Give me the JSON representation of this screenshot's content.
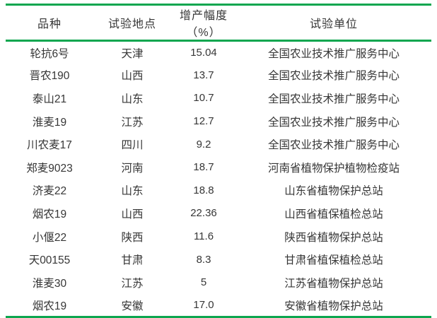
{
  "colors": {
    "accent_green": "#0ca64f",
    "text": "#363636"
  },
  "table": {
    "headers": {
      "variety": "品种",
      "location": "试验地点",
      "increase": "增产幅度（%）",
      "unit": "试验单位"
    },
    "rows": [
      {
        "variety": "轮抗6号",
        "location": "天津",
        "increase": "15.04",
        "unit": "全国农业技术推广服务中心"
      },
      {
        "variety": "晋农190",
        "location": "山西",
        "increase": "13.7",
        "unit": "全国农业技术推广服务中心"
      },
      {
        "variety": "泰山21",
        "location": "山东",
        "increase": "10.7",
        "unit": "全国农业技术推广服务中心"
      },
      {
        "variety": "淮麦19",
        "location": "江苏",
        "increase": "12.7",
        "unit": "全国农业技术推广服务中心"
      },
      {
        "variety": "川农麦17",
        "location": "四川",
        "increase": "9.2",
        "unit": "全国农业技术推广服务中心"
      },
      {
        "variety": "郑麦9023",
        "location": "河南",
        "increase": "18.7",
        "unit": "河南省植物保护植物检疫站"
      },
      {
        "variety": "济麦22",
        "location": "山东",
        "increase": "18.8",
        "unit": "山东省植物保护总站"
      },
      {
        "variety": "烟农19",
        "location": "山西",
        "increase": "22.36",
        "unit": "山西省植保植检总站"
      },
      {
        "variety": "小偃22",
        "location": "陕西",
        "increase": "11.6",
        "unit": "陕西省植物保护总站"
      },
      {
        "variety": "天00155",
        "location": "甘肃",
        "increase": "8.3",
        "unit": "甘肃省植保植检总站"
      },
      {
        "variety": "淮麦30",
        "location": "江苏",
        "increase": "5",
        "unit": "江苏省植物保护总站"
      },
      {
        "variety": "烟农19",
        "location": "安徽",
        "increase": "17.0",
        "unit": "安徽省植物保护总站"
      }
    ]
  }
}
